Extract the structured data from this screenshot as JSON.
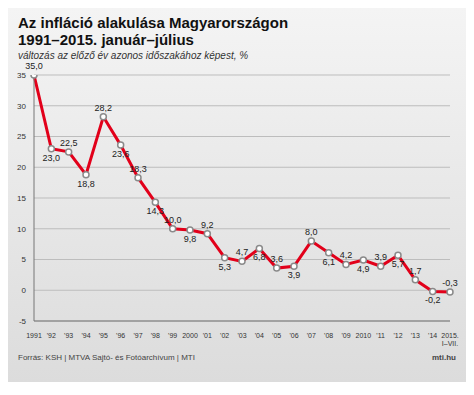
{
  "chart_data": {
    "type": "line",
    "title": "Az infláció alakulása Magyarországon",
    "subtitle": "1991–2015. január–július",
    "y_label": "változás az előző év azonos időszakához képest, %",
    "annotations": [
      "Forrás: KSH | MTVA Sajtó- és Fotóarchívum | MTI",
      "mti.hu"
    ],
    "categories": [
      "1991",
      "'92",
      "'93",
      "'94",
      "'95",
      "'96",
      "'97",
      "'98",
      "'99",
      "2000",
      "'01",
      "'02",
      "'03",
      "'04",
      "'05",
      "'06",
      "'07",
      "'08",
      "'09",
      "2010",
      "'11",
      "'12",
      "'13",
      "'14",
      "2015. I–VII."
    ],
    "values": [
      35.0,
      23.0,
      22.5,
      18.8,
      28.2,
      23.6,
      18.3,
      14.3,
      10.0,
      9.8,
      9.2,
      5.3,
      4.7,
      6.8,
      3.6,
      3.9,
      8.0,
      6.1,
      4.2,
      4.9,
      3.9,
      5.7,
      1.7,
      -0.2,
      -0.3
    ],
    "value_labels": [
      "35,0",
      "23,0",
      "22,5",
      "18,8",
      "28,2",
      "23,6",
      "18,3",
      "14,3",
      "10,0",
      "9,8",
      "9,2",
      "5,3",
      "4,7",
      "6,8",
      "3,6",
      "3,9",
      "8,0",
      "6,1",
      "4,2",
      "4,9",
      "3,9",
      "5,7",
      "1,7",
      "-0,2",
      "-0,3"
    ],
    "color": "#e2001a",
    "ylim": [
      -5,
      35
    ],
    "yticks": [
      -5,
      0,
      5,
      10,
      15,
      20,
      25,
      30,
      35
    ],
    "grid": true,
    "data_labels": true,
    "marker": "circle",
    "line_style": "solid"
  }
}
